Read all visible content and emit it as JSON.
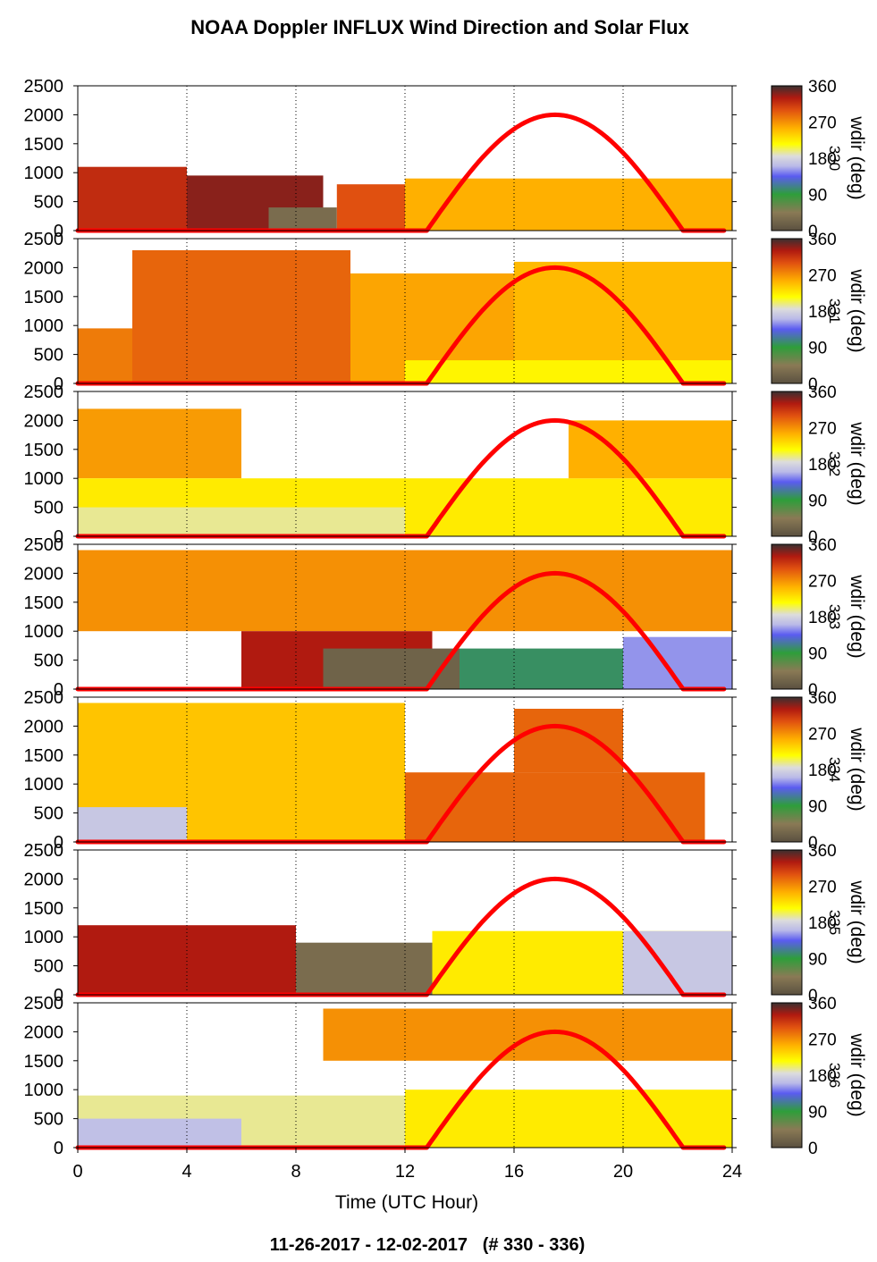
{
  "chart_data": {
    "type": "heatmap",
    "title": "NOAA Doppler INFLUX Wind Direction and Solar Flux",
    "xlabel": "Time (UTC Hour)",
    "xlim": [
      0,
      24
    ],
    "x_ticks": [
      "0",
      "4",
      "8",
      "12",
      "16",
      "20",
      "24"
    ],
    "ylim": [
      0,
      2500
    ],
    "y_ticks": [
      "0",
      "500",
      "1000",
      "1500",
      "2000",
      "2500"
    ],
    "colorbar": {
      "label": "wdir (deg)",
      "ticks": [
        "0",
        "90",
        "180",
        "270",
        "360"
      ],
      "range": [
        0,
        360
      ]
    },
    "footer": "11-26-2017 - 12-02-2017   (# 330 - 336)",
    "solar_flux": {
      "sunrise_hour": 12.8,
      "sunset_hour": 22.2,
      "peak_hour": 17.5,
      "peak_value": 2000,
      "color": "#ff0000"
    },
    "panels": [
      {
        "day": "330",
        "regions": [
          {
            "t0": 0,
            "t1": 4,
            "h0": 0,
            "h1": 1100,
            "wdir": 320
          },
          {
            "t0": 4,
            "t1": 9,
            "h0": 0,
            "h1": 950,
            "wdir": 340
          },
          {
            "t0": 7,
            "t1": 9.5,
            "h0": 0,
            "h1": 400,
            "wdir": 30
          },
          {
            "t0": 9.5,
            "t1": 12,
            "h0": 0,
            "h1": 800,
            "wdir": 300
          },
          {
            "t0": 12,
            "t1": 24,
            "h0": 0,
            "h1": 900,
            "wdir": 255
          }
        ]
      },
      {
        "day": "331",
        "regions": [
          {
            "t0": 0,
            "t1": 2,
            "h0": 0,
            "h1": 950,
            "wdir": 280
          },
          {
            "t0": 2,
            "t1": 10,
            "h0": 0,
            "h1": 2300,
            "wdir": 290
          },
          {
            "t0": 10,
            "t1": 16,
            "h0": 0,
            "h1": 1900,
            "wdir": 260
          },
          {
            "t0": 16,
            "t1": 24,
            "h0": 0,
            "h1": 2100,
            "wdir": 250
          },
          {
            "t0": 12,
            "t1": 24,
            "h0": 0,
            "h1": 400,
            "wdir": 220
          }
        ]
      },
      {
        "day": "332",
        "regions": [
          {
            "t0": 0,
            "t1": 6,
            "h0": 1000,
            "h1": 2200,
            "wdir": 265
          },
          {
            "t0": 0,
            "t1": 24,
            "h0": 0,
            "h1": 1000,
            "wdir": 225
          },
          {
            "t0": 0,
            "t1": 12,
            "h0": 0,
            "h1": 500,
            "wdir": 195
          },
          {
            "t0": 18,
            "t1": 24,
            "h0": 1000,
            "h1": 2000,
            "wdir": 255
          }
        ]
      },
      {
        "day": "333",
        "regions": [
          {
            "t0": 0,
            "t1": 24,
            "h0": 1000,
            "h1": 2400,
            "wdir": 270
          },
          {
            "t0": 6,
            "t1": 13,
            "h0": 0,
            "h1": 1000,
            "wdir": 330
          },
          {
            "t0": 9,
            "t1": 14,
            "h0": 0,
            "h1": 700,
            "wdir": 20
          },
          {
            "t0": 14,
            "t1": 20,
            "h0": 0,
            "h1": 700,
            "wdir": 100
          },
          {
            "t0": 20,
            "t1": 24,
            "h0": 0,
            "h1": 900,
            "wdir": 150
          }
        ]
      },
      {
        "day": "334",
        "regions": [
          {
            "t0": 0,
            "t1": 12,
            "h0": 0,
            "h1": 2400,
            "wdir": 245
          },
          {
            "t0": 0,
            "t1": 4,
            "h0": 0,
            "h1": 600,
            "wdir": 170
          },
          {
            "t0": 12,
            "t1": 23,
            "h0": 0,
            "h1": 1200,
            "wdir": 290
          },
          {
            "t0": 16,
            "t1": 20,
            "h0": 1200,
            "h1": 2300,
            "wdir": 290
          }
        ]
      },
      {
        "day": "335",
        "regions": [
          {
            "t0": 0,
            "t1": 8,
            "h0": 0,
            "h1": 1200,
            "wdir": 330
          },
          {
            "t0": 8,
            "t1": 13,
            "h0": 0,
            "h1": 900,
            "wdir": 30
          },
          {
            "t0": 13,
            "t1": 24,
            "h0": 0,
            "h1": 1100,
            "wdir": 225
          },
          {
            "t0": 20,
            "t1": 24,
            "h0": 0,
            "h1": 1100,
            "wdir": 170
          }
        ]
      },
      {
        "day": "336",
        "regions": [
          {
            "t0": 0,
            "t1": 12,
            "h0": 0,
            "h1": 900,
            "wdir": 195
          },
          {
            "t0": 0,
            "t1": 6,
            "h0": 0,
            "h1": 500,
            "wdir": 165
          },
          {
            "t0": 12,
            "t1": 24,
            "h0": 0,
            "h1": 1000,
            "wdir": 225
          },
          {
            "t0": 9,
            "t1": 24,
            "h0": 1500,
            "h1": 2400,
            "wdir": 270
          }
        ]
      }
    ]
  }
}
